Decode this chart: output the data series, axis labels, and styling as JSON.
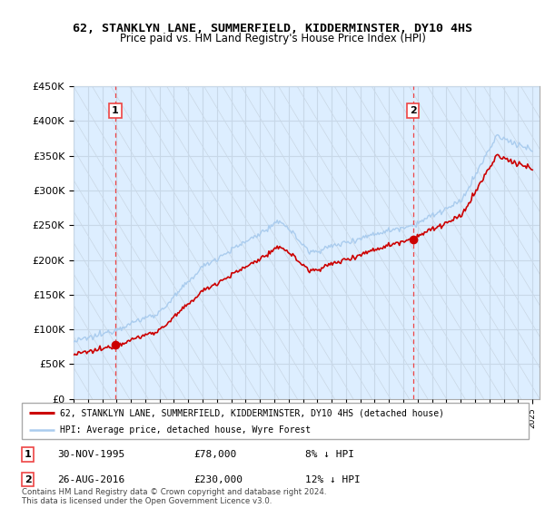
{
  "title": "62, STANKLYN LANE, SUMMERFIELD, KIDDERMINSTER, DY10 4HS",
  "subtitle": "Price paid vs. HM Land Registry's House Price Index (HPI)",
  "ylim": [
    0,
    450000
  ],
  "yticks": [
    0,
    50000,
    100000,
    150000,
    200000,
    250000,
    300000,
    350000,
    400000,
    450000
  ],
  "ytick_labels": [
    "£0",
    "£50K",
    "£100K",
    "£150K",
    "£200K",
    "£250K",
    "£300K",
    "£350K",
    "£400K",
    "£450K"
  ],
  "xlim_start": 1993.0,
  "xlim_end": 2025.5,
  "sale1_date": 1995.917,
  "sale1_price": 78000,
  "sale2_date": 2016.667,
  "sale2_price": 230000,
  "red_line_color": "#cc0000",
  "blue_line_color": "#aaccee",
  "vline_color": "#ee4444",
  "marker_color": "#cc0000",
  "grid_color": "#c8d8e8",
  "bg_color": "#ddeeff",
  "hatch_color": "#c0ccd8",
  "legend_label_red": "62, STANKLYN LANE, SUMMERFIELD, KIDDERMINSTER, DY10 4HS (detached house)",
  "legend_label_blue": "HPI: Average price, detached house, Wyre Forest",
  "footnote_rows": [
    {
      "num": "1",
      "date": "30-NOV-1995",
      "price": "£78,000",
      "hpi": "8% ↓ HPI"
    },
    {
      "num": "2",
      "date": "26-AUG-2016",
      "price": "£230,000",
      "hpi": "12% ↓ HPI"
    }
  ],
  "copyright_text": "Contains HM Land Registry data © Crown copyright and database right 2024.\nThis data is licensed under the Open Government Licence v3.0."
}
